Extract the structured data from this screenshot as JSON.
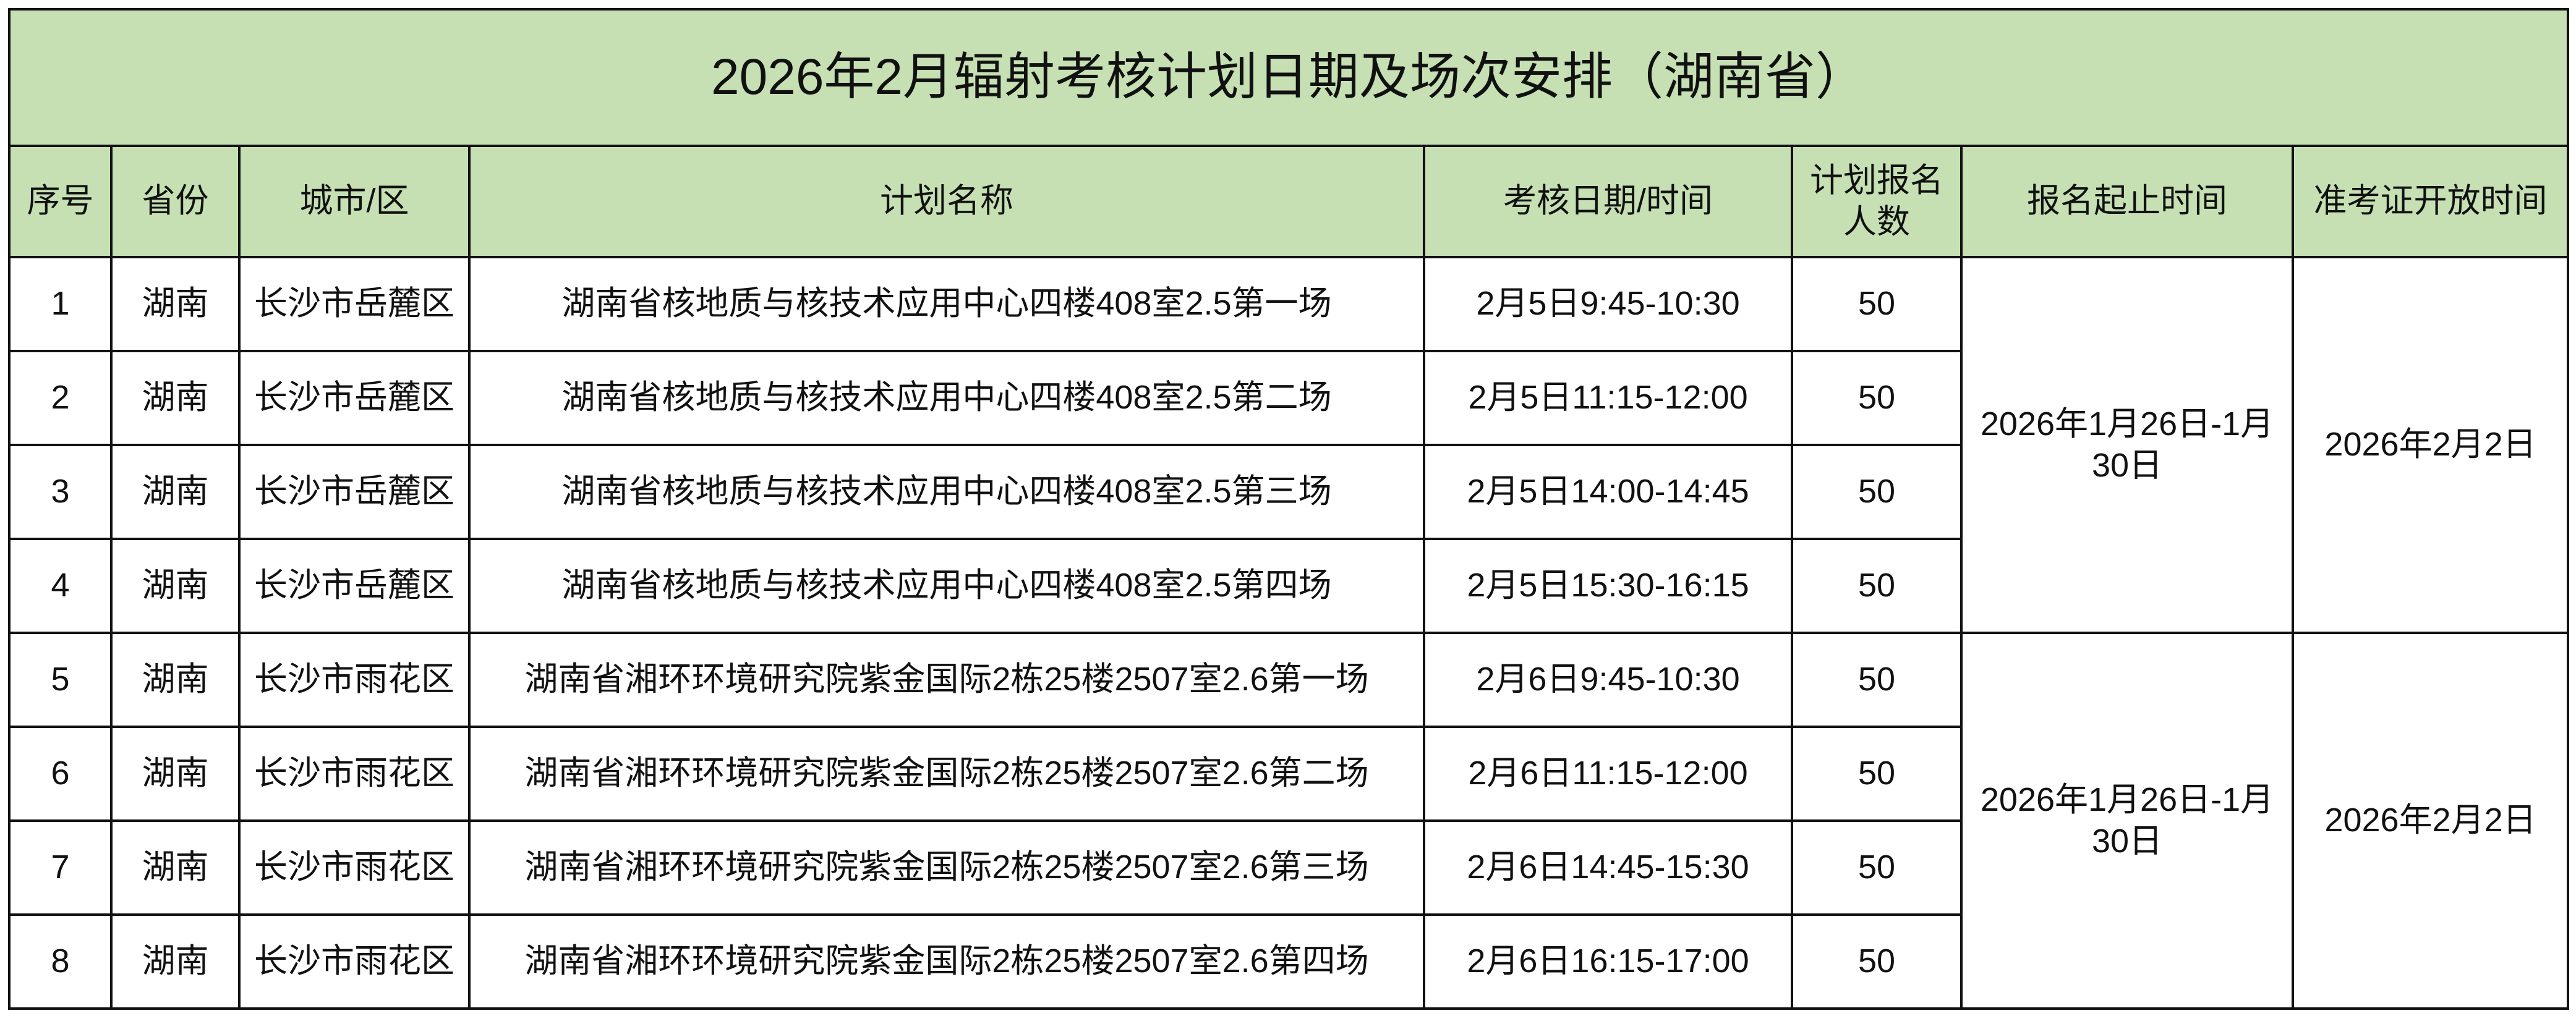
{
  "title": "2026年2月辐射考核计划日期及场次安排（湖南省）",
  "colors": {
    "header_bg": "#c6e0b4",
    "border": "#111111"
  },
  "columns": [
    "序号",
    "省份",
    "城市/区",
    "计划名称",
    "考核日期/时间",
    "计划报名人数",
    "报名起止时间",
    "准考证开放时间"
  ],
  "rows": [
    {
      "no": "1",
      "province": "湖南",
      "city": "长沙市岳麓区",
      "plan": "湖南省核地质与核技术应用中心四楼408室2.5第一场",
      "datetime": "2月5日9:45-10:30",
      "quota": "50"
    },
    {
      "no": "2",
      "province": "湖南",
      "city": "长沙市岳麓区",
      "plan": "湖南省核地质与核技术应用中心四楼408室2.5第二场",
      "datetime": "2月5日11:15-12:00",
      "quota": "50"
    },
    {
      "no": "3",
      "province": "湖南",
      "city": "长沙市岳麓区",
      "plan": "湖南省核地质与核技术应用中心四楼408室2.5第三场",
      "datetime": "2月5日14:00-14:45",
      "quota": "50"
    },
    {
      "no": "4",
      "province": "湖南",
      "city": "长沙市岳麓区",
      "plan": "湖南省核地质与核技术应用中心四楼408室2.5第四场",
      "datetime": "2月5日15:30-16:15",
      "quota": "50"
    },
    {
      "no": "5",
      "province": "湖南",
      "city": "长沙市雨花区",
      "plan": "湖南省湘环环境研究院紫金国际2栋25楼2507室2.6第一场",
      "datetime": "2月6日9:45-10:30",
      "quota": "50"
    },
    {
      "no": "6",
      "province": "湖南",
      "city": "长沙市雨花区",
      "plan": "湖南省湘环环境研究院紫金国际2栋25楼2507室2.6第二场",
      "datetime": "2月6日11:15-12:00",
      "quota": "50"
    },
    {
      "no": "7",
      "province": "湖南",
      "city": "长沙市雨花区",
      "plan": "湖南省湘环环境研究院紫金国际2栋25楼2507室2.6第三场",
      "datetime": "2月6日14:45-15:30",
      "quota": "50"
    },
    {
      "no": "8",
      "province": "湖南",
      "city": "长沙市雨花区",
      "plan": "湖南省湘环环境研究院紫金国际2栋25楼2507室2.6第四场",
      "datetime": "2月6日16:15-17:00",
      "quota": "50"
    }
  ],
  "groups": [
    {
      "registration_period": "2026年1月26日-1月30日",
      "admission_ticket_open": "2026年2月2日"
    },
    {
      "registration_period": "2026年1月26日-1月30日",
      "admission_ticket_open": "2026年2月2日"
    }
  ]
}
